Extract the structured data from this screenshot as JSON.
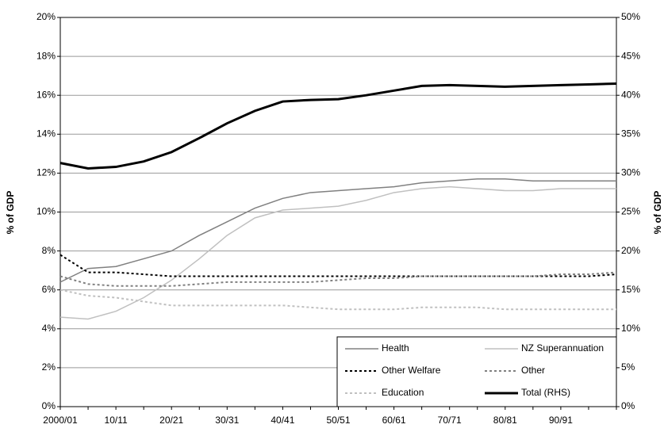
{
  "chart_data": {
    "type": "line",
    "categories": [
      "2000/01",
      null,
      "10/11",
      null,
      "20/21",
      null,
      "30/31",
      null,
      "40/41",
      null,
      "50/51",
      null,
      "60/61",
      null,
      "70/71",
      null,
      "80/81",
      null,
      "90/91",
      null,
      null
    ],
    "y_label": "% of GDP",
    "y2_label": "% of GDP",
    "ylim": [
      0,
      20
    ],
    "yticks": [
      {
        "value": 0,
        "label": "0%"
      },
      {
        "value": 2,
        "label": "2%"
      },
      {
        "value": 4,
        "label": "4%"
      },
      {
        "value": 6,
        "label": "6%"
      },
      {
        "value": 8,
        "label": "8%"
      },
      {
        "value": 10,
        "label": "10%"
      },
      {
        "value": 12,
        "label": "12%"
      },
      {
        "value": 14,
        "label": "14%"
      },
      {
        "value": 16,
        "label": "16%"
      },
      {
        "value": 18,
        "label": "18%"
      },
      {
        "value": 20,
        "label": "20%"
      }
    ],
    "y2lim": [
      0,
      50
    ],
    "y2ticks": [
      {
        "value": 0,
        "label": "0%"
      },
      {
        "value": 5,
        "label": "5%"
      },
      {
        "value": 10,
        "label": "10%"
      },
      {
        "value": 15,
        "label": "15%"
      },
      {
        "value": 20,
        "label": "20%"
      },
      {
        "value": 25,
        "label": "25%"
      },
      {
        "value": 30,
        "label": "30%"
      },
      {
        "value": 35,
        "label": "35%"
      },
      {
        "value": 40,
        "label": "40%"
      },
      {
        "value": 45,
        "label": "45%"
      },
      {
        "value": 50,
        "label": "50%"
      }
    ],
    "grid": true,
    "legend": "bottom-right",
    "series": [
      {
        "name": "Health",
        "color": "#808080",
        "dash": "solid",
        "values": [
          6.4,
          7.1,
          7.2,
          7.6,
          8.0,
          8.8,
          9.5,
          10.2,
          10.7,
          11.0,
          11.1,
          11.2,
          11.3,
          11.5,
          11.6,
          11.7,
          11.7,
          11.6,
          11.6,
          11.6,
          11.6
        ]
      },
      {
        "name": "NZ Superannuation",
        "color": "#c0c0c0",
        "dash": "solid",
        "values": [
          4.6,
          4.5,
          4.9,
          5.6,
          6.5,
          7.6,
          8.8,
          9.7,
          10.1,
          10.2,
          10.3,
          10.6,
          11.0,
          11.2,
          11.3,
          11.2,
          11.1,
          11.1,
          11.2,
          11.2,
          11.2
        ]
      },
      {
        "name": "Other Welfare",
        "color": "#000000",
        "dash": "dotted",
        "values": [
          7.8,
          6.9,
          6.9,
          6.8,
          6.7,
          6.7,
          6.7,
          6.7,
          6.7,
          6.7,
          6.7,
          6.7,
          6.7,
          6.7,
          6.7,
          6.7,
          6.7,
          6.7,
          6.7,
          6.7,
          6.8
        ]
      },
      {
        "name": "Other",
        "color": "#808080",
        "dash": "dotted",
        "values": [
          6.7,
          6.3,
          6.2,
          6.2,
          6.2,
          6.3,
          6.4,
          6.4,
          6.4,
          6.4,
          6.5,
          6.6,
          6.6,
          6.7,
          6.7,
          6.7,
          6.7,
          6.7,
          6.8,
          6.8,
          6.9
        ]
      },
      {
        "name": "Education",
        "color": "#c0c0c0",
        "dash": "dotted",
        "values": [
          6.0,
          5.7,
          5.6,
          5.4,
          5.2,
          5.2,
          5.2,
          5.2,
          5.2,
          5.1,
          5.0,
          5.0,
          5.0,
          5.1,
          5.1,
          5.1,
          5.0,
          5.0,
          5.0,
          5.0,
          5.0
        ]
      },
      {
        "name": "Total (RHS)",
        "color": "#000000",
        "dash": "thick",
        "axis": "y2",
        "values": [
          31.3,
          30.6,
          30.8,
          31.5,
          32.7,
          34.5,
          36.4,
          38.0,
          39.2,
          39.4,
          39.5,
          40.0,
          40.6,
          41.2,
          41.3,
          41.2,
          41.1,
          41.2,
          41.3,
          41.4,
          41.5
        ]
      }
    ]
  }
}
